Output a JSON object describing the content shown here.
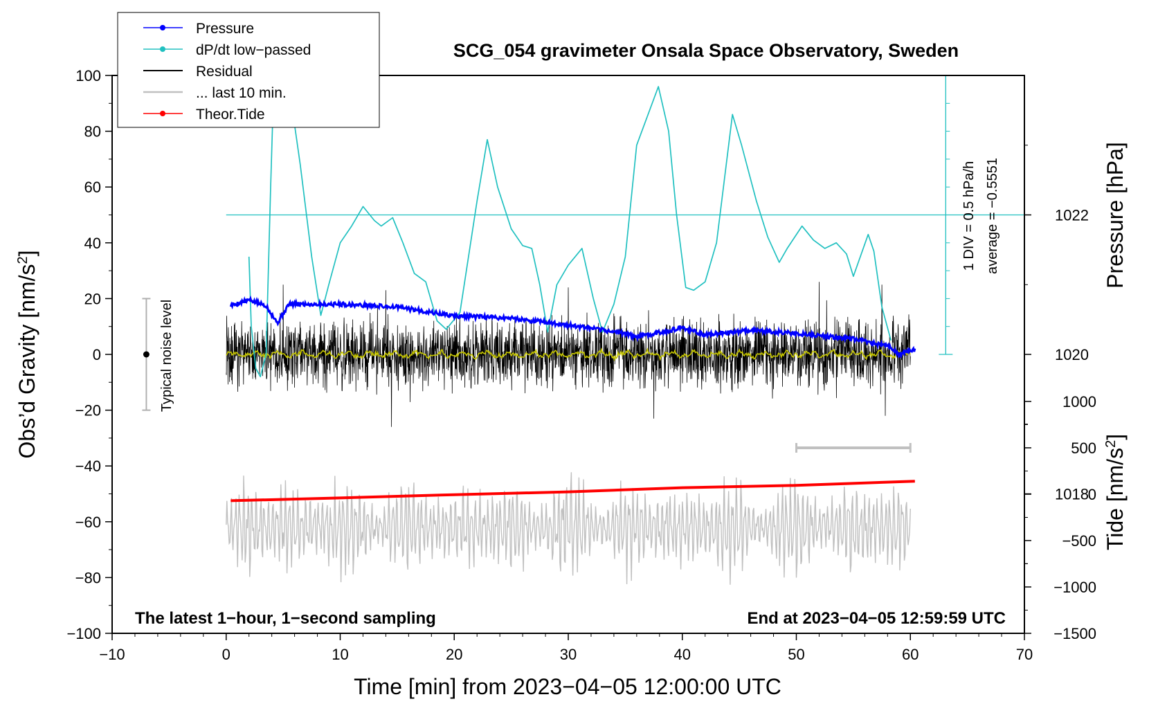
{
  "chart_data": {
    "type": "line",
    "title": "SCG_054 gravimeter Onsala Space Observatory, Sweden",
    "xlabel": "Time [min] from 2023−04−05 12:00:00 UTC",
    "xlim": [
      -10,
      70
    ],
    "x_ticks": [
      -10,
      0,
      10,
      20,
      30,
      40,
      50,
      60,
      70
    ],
    "x_tick_labels": [
      "−10",
      "0",
      "10",
      "20",
      "30",
      "40",
      "50",
      "60",
      "70"
    ],
    "left_axis": {
      "label_main": "Obs’d Gravity [nm/s",
      "label_sup": "2",
      "label_end": "]",
      "ylim": [
        -100,
        100
      ],
      "ticks": [
        -100,
        -80,
        -60,
        -40,
        -20,
        0,
        20,
        40,
        60,
        80,
        100
      ],
      "tick_labels": [
        "−100",
        "−80",
        "−60",
        "−40",
        "−20",
        "0",
        "20",
        "40",
        "60",
        "80",
        "100"
      ]
    },
    "pressure_axis": {
      "label": "Pressure [hPa]",
      "ticks": [
        1018,
        1020,
        1022
      ],
      "tick_labels": [
        "1018",
        "1020",
        "1022"
      ],
      "range_hpa": [
        1016,
        1024
      ]
    },
    "tide_axis": {
      "label_main": "Tide [nm/s",
      "label_sup": "2",
      "label_end": "]",
      "ticks": [
        -1500,
        -1000,
        -500,
        0,
        500,
        1000
      ],
      "tick_labels": [
        "−1500",
        "−1000",
        "−500",
        "0",
        "500",
        "1000"
      ],
      "range": [
        -1500,
        1000
      ]
    },
    "legend": {
      "placement": "top-left",
      "entries": [
        {
          "name": "Pressure",
          "color": "#0000ff",
          "marker": true
        },
        {
          "name": "dP/dt low−passed",
          "color": "#20c0c0",
          "marker": true
        },
        {
          "name": "Residual",
          "color": "#000000",
          "marker": false
        },
        {
          "name": "... last 10 min.",
          "color": "#c0c0c0",
          "marker": false
        },
        {
          "name": "Theor.Tide",
          "color": "#ff0000",
          "marker": true
        }
      ]
    },
    "annotations": {
      "noise_label": "Typical noise level",
      "div_label": "1 DIV = 0.5 hPa/h",
      "avg_label": "average = −0.5551",
      "bottom_left": "The latest 1−hour, 1−second sampling",
      "bottom_right": "End at 2023−04−05 12:59:59 UTC"
    },
    "noise_bar": {
      "x": -7,
      "low": -20,
      "high": 20,
      "center": 0
    },
    "last10_bar": {
      "x_start": 50,
      "x_end": 60,
      "tide_level": 500
    },
    "dpdt_reference_level": 50,
    "dpdt_scale_tick_top": 100,
    "series": [
      {
        "name": "Pressure",
        "axis": "pressure",
        "color": "#0000ff",
        "points": [
          [
            0.4,
            1020.7
          ],
          [
            2,
            1020.78
          ],
          [
            3.5,
            1020.7
          ],
          [
            4.5,
            1020.45
          ],
          [
            5.5,
            1020.72
          ],
          [
            10,
            1020.72
          ],
          [
            15,
            1020.68
          ],
          [
            20,
            1020.55
          ],
          [
            25,
            1020.52
          ],
          [
            30,
            1020.42
          ],
          [
            35,
            1020.3
          ],
          [
            36,
            1020.25
          ],
          [
            40,
            1020.38
          ],
          [
            42,
            1020.28
          ],
          [
            46,
            1020.35
          ],
          [
            50,
            1020.3
          ],
          [
            55,
            1020.22
          ],
          [
            58,
            1020.12
          ],
          [
            59,
            1020.0
          ],
          [
            60.4,
            1020.07
          ]
        ]
      },
      {
        "name": "dP/dt low-passed",
        "axis": "left",
        "color": "#20c0c0",
        "points": [
          [
            2,
            35
          ],
          [
            2.2,
            10
          ],
          [
            2.6,
            -5
          ],
          [
            3,
            -8
          ],
          [
            3.5,
            0
          ],
          [
            3.9,
            60
          ],
          [
            4.2,
            100
          ],
          [
            5.5,
            100
          ],
          [
            5.9,
            85
          ],
          [
            6.5,
            68
          ],
          [
            7.5,
            35
          ],
          [
            8.3,
            14
          ],
          [
            9,
            25
          ],
          [
            10,
            40
          ],
          [
            11,
            46
          ],
          [
            12,
            53
          ],
          [
            13,
            48
          ],
          [
            13.6,
            46
          ],
          [
            14.6,
            49
          ],
          [
            15.5,
            40
          ],
          [
            16.5,
            29
          ],
          [
            17.5,
            26
          ],
          [
            18.5,
            12
          ],
          [
            19.3,
            9
          ],
          [
            20.5,
            15
          ],
          [
            22,
            55
          ],
          [
            22.9,
            77
          ],
          [
            23.8,
            60
          ],
          [
            25,
            45
          ],
          [
            26,
            39
          ],
          [
            26.8,
            38
          ],
          [
            27.5,
            25
          ],
          [
            28.2,
            8
          ],
          [
            29,
            25
          ],
          [
            30,
            32
          ],
          [
            31.2,
            38
          ],
          [
            32.2,
            20
          ],
          [
            33,
            8
          ],
          [
            34,
            18
          ],
          [
            35,
            35
          ],
          [
            36,
            75
          ],
          [
            37.9,
            96
          ],
          [
            38.8,
            80
          ],
          [
            39.5,
            50
          ],
          [
            40.3,
            24
          ],
          [
            41,
            23
          ],
          [
            42,
            26
          ],
          [
            43,
            40
          ],
          [
            44.4,
            86
          ],
          [
            45.2,
            75
          ],
          [
            46.5,
            55
          ],
          [
            47.5,
            42
          ],
          [
            48.5,
            33
          ],
          [
            49.2,
            38
          ],
          [
            50.5,
            46
          ],
          [
            51.5,
            41
          ],
          [
            52.5,
            38
          ],
          [
            53.5,
            40
          ],
          [
            54.4,
            36
          ],
          [
            55,
            28
          ],
          [
            56.3,
            43
          ],
          [
            56.8,
            37
          ],
          [
            57.5,
            17
          ],
          [
            58.3,
            5
          ]
        ]
      },
      {
        "name": "Residual",
        "axis": "left",
        "color": "#000000",
        "x_range": [
          0,
          60
        ],
        "typical_amplitude": 10,
        "extremes": [
          [
            5,
            25
          ],
          [
            14,
            23
          ],
          [
            14.5,
            -26
          ],
          [
            30,
            24
          ],
          [
            37.5,
            -23
          ],
          [
            52,
            26
          ],
          [
            57.5,
            25
          ],
          [
            57.8,
            -22
          ]
        ]
      },
      {
        "name": "Residual smoothed",
        "axis": "left",
        "color": "#c8c800",
        "x_range": [
          0,
          60
        ],
        "baseline": 0,
        "typical_amplitude": 1.5
      },
      {
        "name": "... last 10 min.",
        "axis": "left",
        "color": "#c0c0c0",
        "x_range": [
          0,
          60
        ],
        "baseline": -62,
        "typical_amplitude": 10,
        "min": -84,
        "max": -36
      },
      {
        "name": "Theor.Tide",
        "axis": "tide",
        "color": "#ff0000",
        "points": [
          [
            0.4,
            -70
          ],
          [
            10,
            -40
          ],
          [
            20,
            -5
          ],
          [
            30,
            25
          ],
          [
            40,
            70
          ],
          [
            50,
            95
          ],
          [
            60.4,
            140
          ]
        ]
      }
    ]
  }
}
